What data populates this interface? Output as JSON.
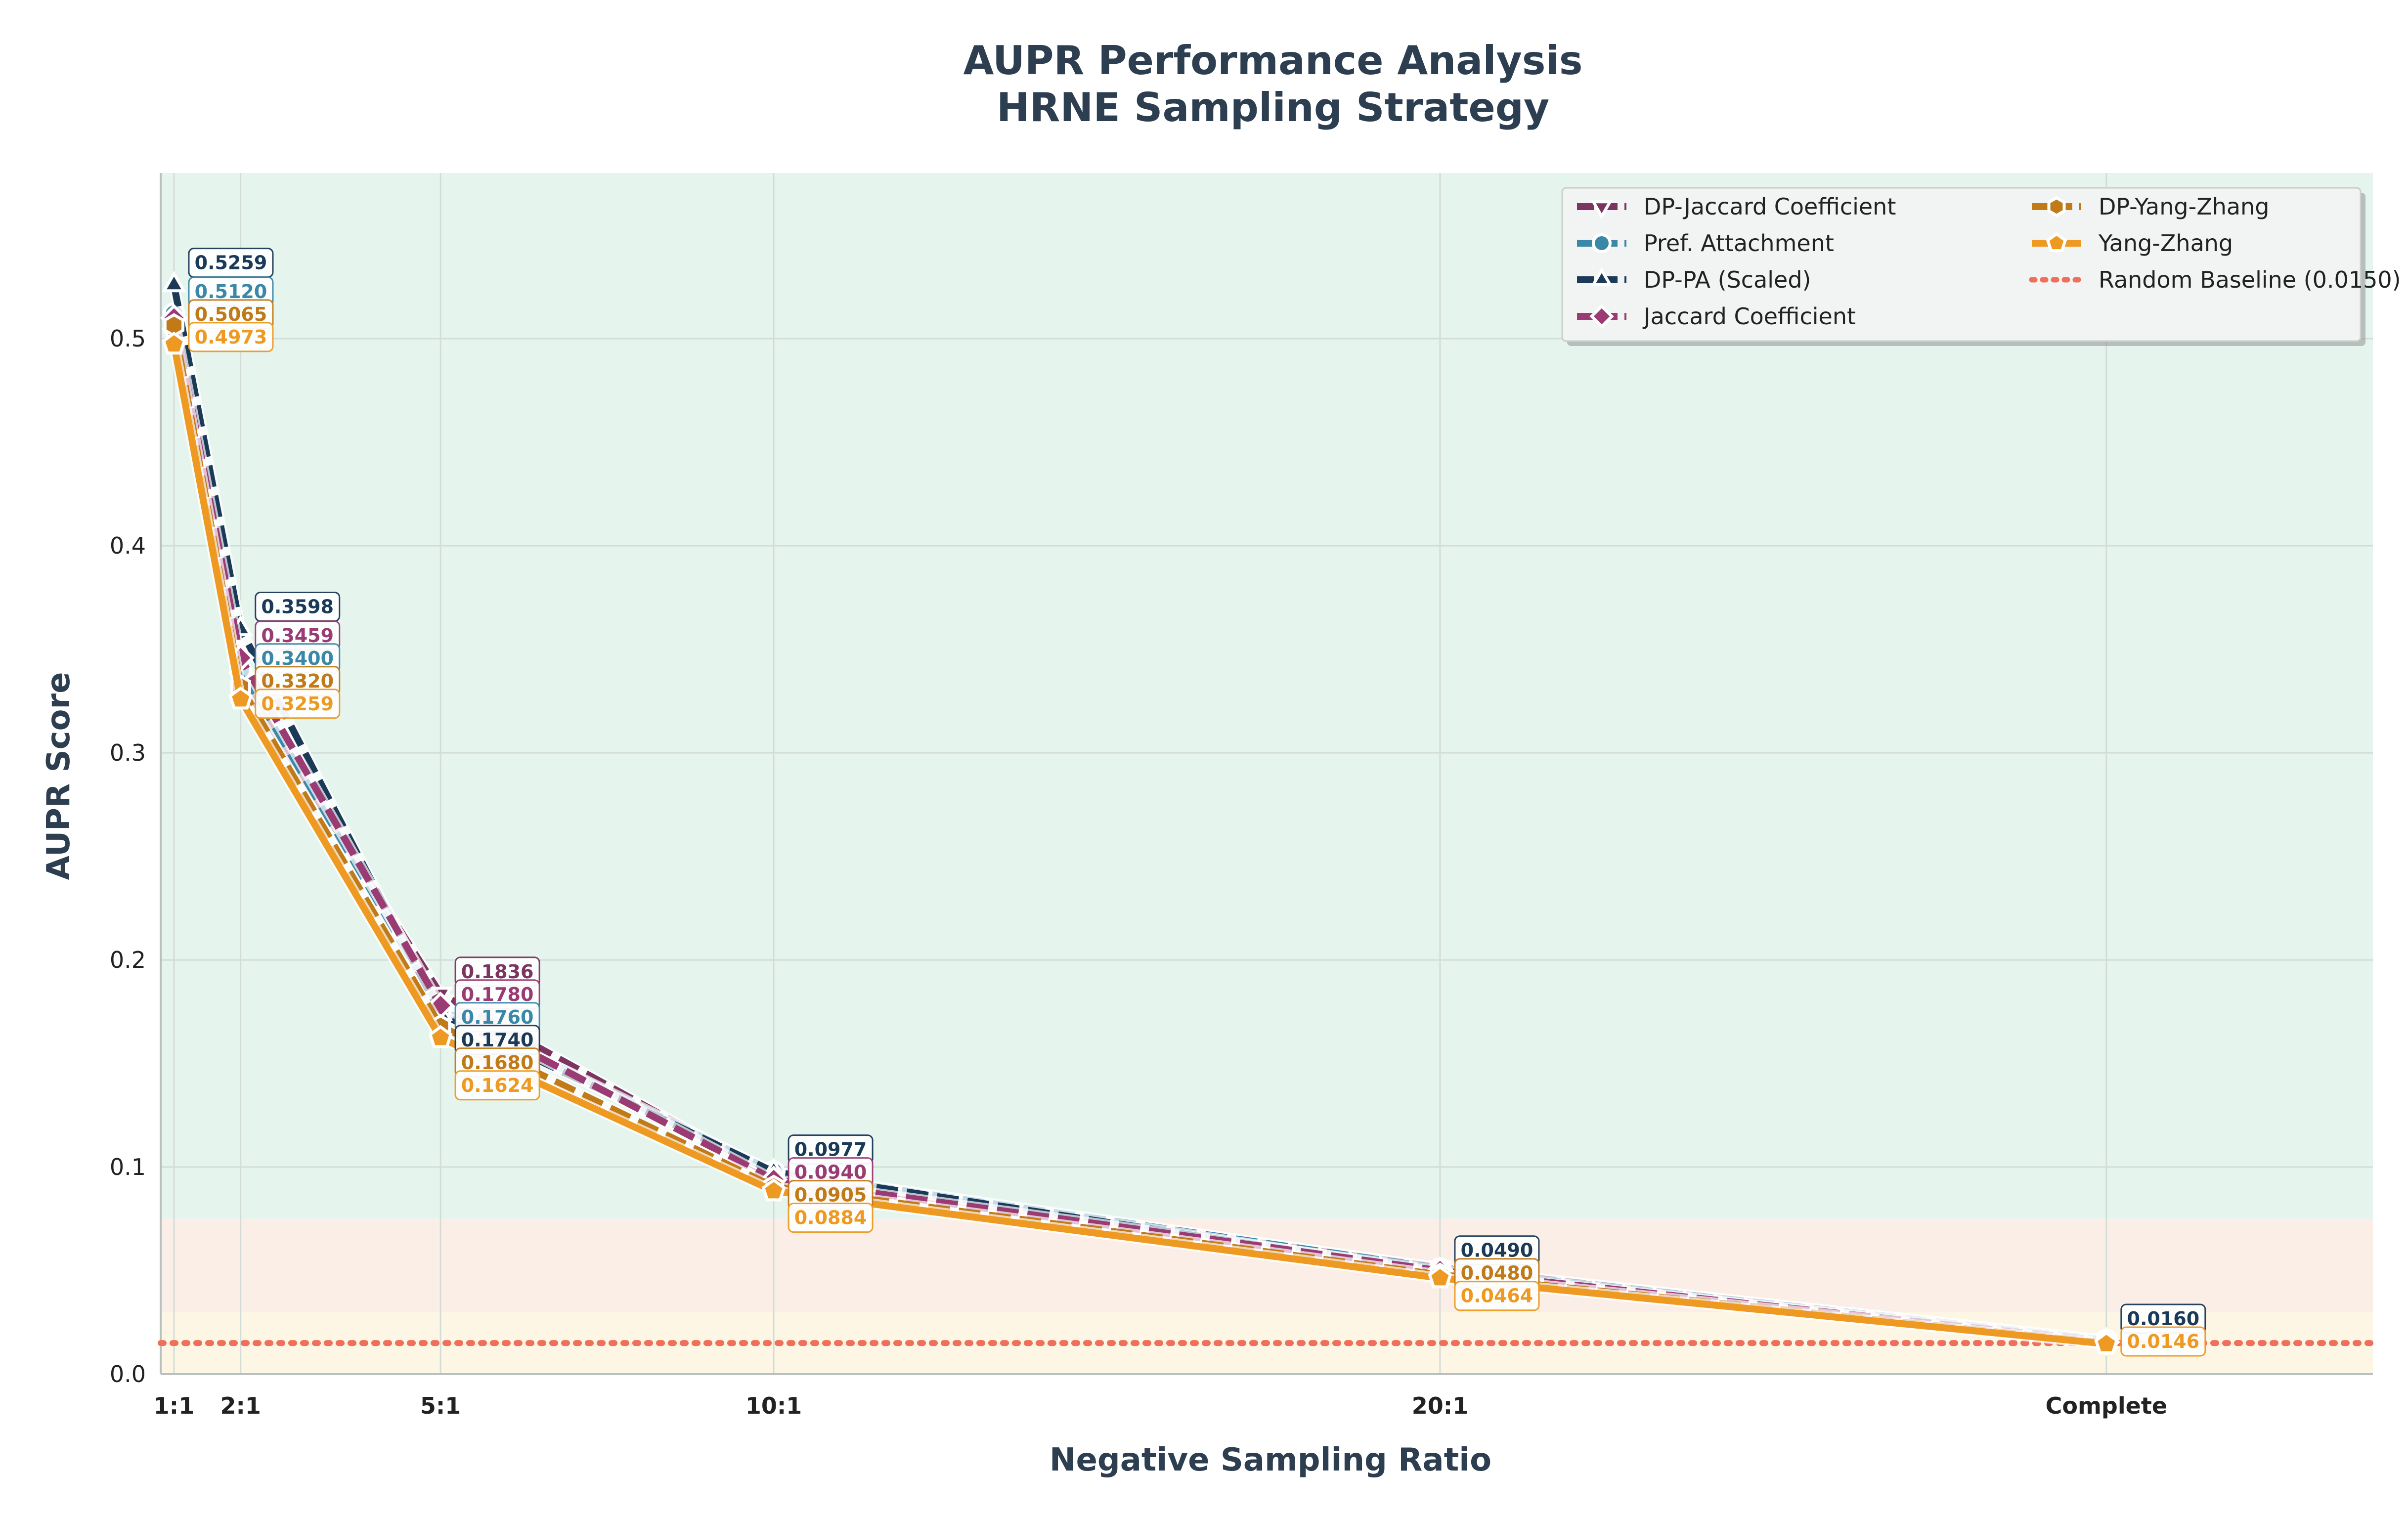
{
  "chart_data": {
    "type": "line",
    "title": "AUPR Performance Analysis",
    "subtitle": "HRNE Sampling Strategy",
    "xlabel": "Negative Sampling Ratio",
    "ylabel": "AUPR Score",
    "x": [
      1,
      2,
      5,
      10,
      20,
      30
    ],
    "categories": [
      "1:1",
      "2:1",
      "5:1",
      "10:1",
      "20:1",
      "Complete"
    ],
    "xlim": [
      0.8,
      34
    ],
    "ylim": [
      0,
      0.58
    ],
    "yticks": [
      "0.0",
      "0.1",
      "0.2",
      "0.3",
      "0.4",
      "0.5"
    ],
    "grid": true,
    "legend_position": "top-right",
    "bands": [
      {
        "from": 0.075,
        "to": 0.58,
        "color": "#e6f4ee"
      },
      {
        "from": 0.03,
        "to": 0.075,
        "color": "#fbeee6"
      },
      {
        "from": 0,
        "to": 0.03,
        "color": "#fdf6e4"
      }
    ],
    "series": [
      {
        "name": "DP-Jaccard Coefficient",
        "color": "#7b3560",
        "dash": "dash",
        "marker": "tri-down",
        "values": [
          0.5015,
          0.3355,
          0.1836,
          0.0955,
          0.0515,
          0.016
        ]
      },
      {
        "name": "Pref. Attachment",
        "color": "#3a88a8",
        "dash": "dash",
        "marker": "circle",
        "values": [
          0.512,
          0.34,
          0.176,
          0.0977,
          0.051,
          0.0165
        ]
      },
      {
        "name": "DP-PA (Scaled)",
        "color": "#1b3a58",
        "dash": "dash",
        "marker": "tri-up",
        "values": [
          0.5259,
          0.3598,
          0.174,
          0.0977,
          0.049,
          0.016
        ]
      },
      {
        "name": "Jaccard Coefficient",
        "color": "#9a3b74",
        "dash": "dash",
        "marker": "diamond",
        "values": [
          0.51,
          0.3459,
          0.178,
          0.094,
          0.05,
          0.0155
        ]
      },
      {
        "name": "DP-Yang-Zhang",
        "color": "#c17a18",
        "dash": "dash",
        "marker": "hexagon",
        "values": [
          0.5065,
          0.332,
          0.168,
          0.0905,
          0.048,
          0.015
        ]
      },
      {
        "name": "Yang-Zhang",
        "color": "#ee9a22",
        "dash": "solid",
        "marker": "pentagon",
        "values": [
          0.4973,
          0.3259,
          0.1624,
          0.0884,
          0.0464,
          0.0146
        ]
      }
    ],
    "baseline": {
      "name": "Random Baseline (0.0150)",
      "value": 0.015,
      "color": "#ef6f5a"
    },
    "data_labels": [
      {
        "series": 2,
        "point": 0,
        "text": "0.5259"
      },
      {
        "series": 1,
        "point": 0,
        "text": "0.5120"
      },
      {
        "series": 4,
        "point": 0,
        "text": "0.5065"
      },
      {
        "series": 5,
        "point": 0,
        "text": "0.4973"
      },
      {
        "series": 2,
        "point": 1,
        "text": "0.3598"
      },
      {
        "series": 3,
        "point": 1,
        "text": "0.3459"
      },
      {
        "series": 1,
        "point": 1,
        "text": "0.3400"
      },
      {
        "series": 4,
        "point": 1,
        "text": "0.3320"
      },
      {
        "series": 5,
        "point": 1,
        "text": "0.3259"
      },
      {
        "series": 0,
        "point": 2,
        "text": "0.1836"
      },
      {
        "series": 3,
        "point": 2,
        "text": "0.1780"
      },
      {
        "series": 1,
        "point": 2,
        "text": "0.1760"
      },
      {
        "series": 2,
        "point": 2,
        "text": "0.1740"
      },
      {
        "series": 4,
        "point": 2,
        "text": "0.1680"
      },
      {
        "series": 5,
        "point": 2,
        "text": "0.1624"
      },
      {
        "series": 2,
        "point": 3,
        "text": "0.0977"
      },
      {
        "series": 3,
        "point": 3,
        "text": "0.0940"
      },
      {
        "series": 4,
        "point": 3,
        "text": "0.0905"
      },
      {
        "series": 5,
        "point": 3,
        "text": "0.0884"
      },
      {
        "series": 2,
        "point": 4,
        "text": "0.0490"
      },
      {
        "series": 4,
        "point": 4,
        "text": "0.0480"
      },
      {
        "series": 5,
        "point": 4,
        "text": "0.0464"
      },
      {
        "series": 2,
        "point": 5,
        "text": "0.0160"
      },
      {
        "series": 5,
        "point": 5,
        "text": "0.0146"
      }
    ]
  }
}
